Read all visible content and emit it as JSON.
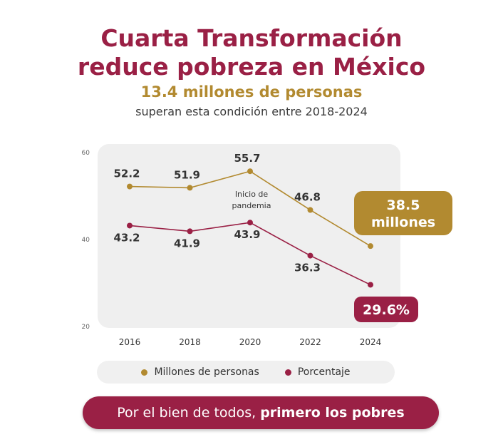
{
  "title": {
    "line1": "Cuarta Transformación",
    "line2": "reduce pobreza en México"
  },
  "subtitle": "13.4 millones de personas",
  "subtitle2": "superan esta condición entre 2018-2024",
  "colors": {
    "primary": "#9a2045",
    "gold": "#b28a30",
    "panel": "#efefef"
  },
  "chart_data": {
    "type": "line",
    "x": [
      "2016",
      "2018",
      "2020",
      "2022",
      "2024"
    ],
    "ylim": [
      20,
      60
    ],
    "yticks": [
      20,
      40,
      60
    ],
    "grid": false,
    "legend_position": "bottom",
    "series": [
      {
        "name": "Millones de personas",
        "values": [
          52.2,
          51.9,
          55.7,
          46.8,
          38.5
        ],
        "labels": [
          "52.2",
          "51.9",
          "55.7",
          "46.8",
          "38.5 millones"
        ],
        "color": "#b28a30"
      },
      {
        "name": "Porcentaje",
        "values": [
          43.2,
          41.9,
          43.9,
          36.3,
          29.6
        ],
        "labels": [
          "43.2",
          "41.9",
          "43.9",
          "36.3",
          "29.6%"
        ],
        "color": "#9a2045"
      }
    ],
    "annotation": "Inicio de pandemia",
    "callouts": {
      "millones_line1": "38.5",
      "millones_line2": "millones",
      "porcentaje": "29.6%"
    }
  },
  "legend": {
    "millones": "Millones de personas",
    "porcentaje": "Porcentaje"
  },
  "banner": {
    "normal": "Por el bien de todos, ",
    "bold": "primero los pobres"
  }
}
